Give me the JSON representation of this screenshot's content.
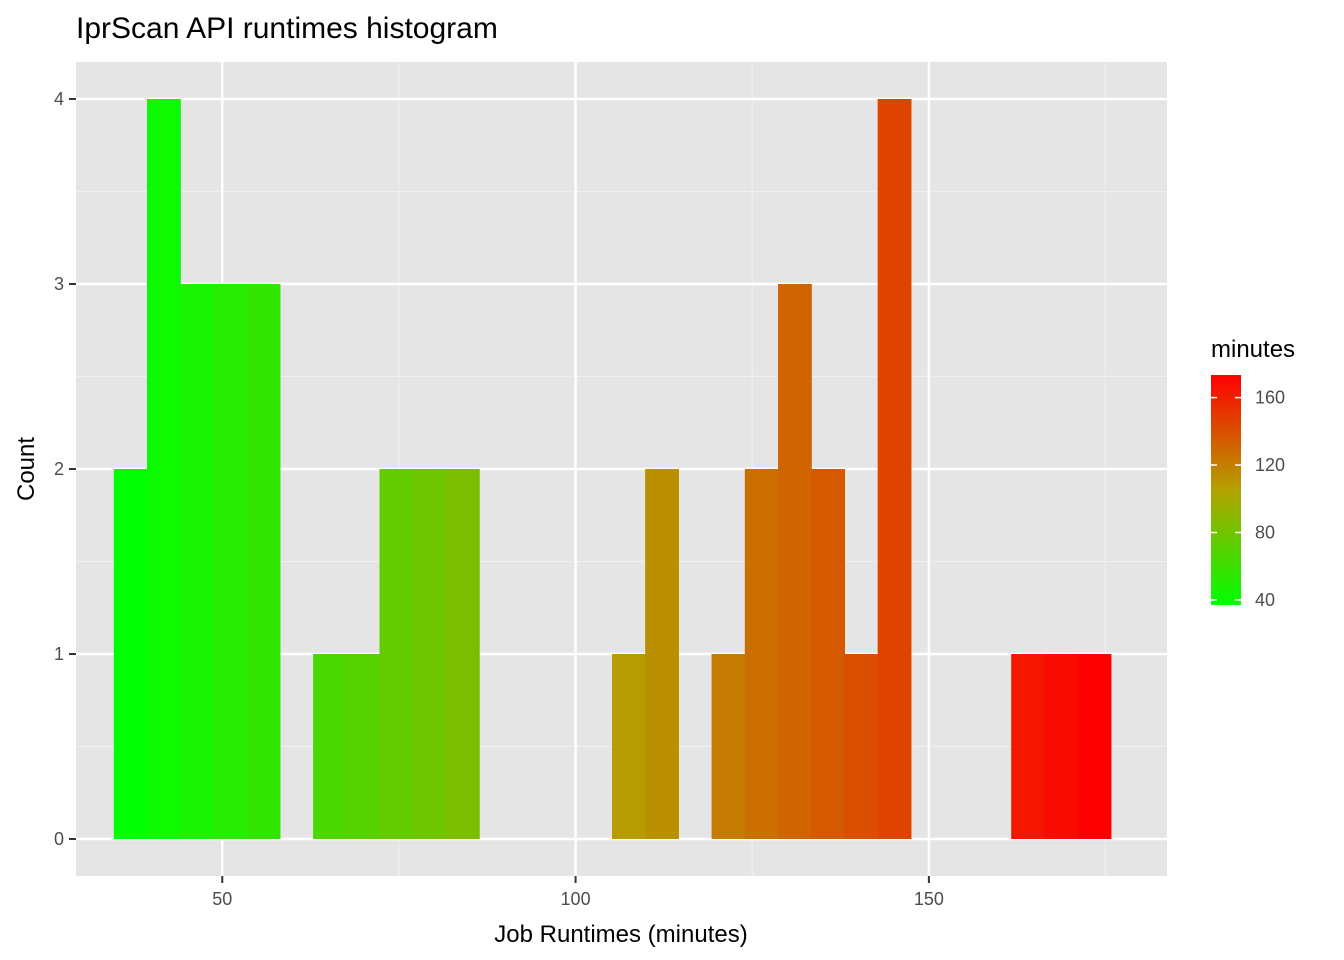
{
  "chart_data": {
    "type": "bar",
    "title": "IprScan API runtimes histogram",
    "xlabel": "Job Runtimes (minutes)",
    "ylabel": "Count",
    "xlim": [
      29.3,
      183.7
    ],
    "ylim": [
      -0.2,
      4.2
    ],
    "xticks": [
      50,
      100,
      150
    ],
    "yticks": [
      0,
      1,
      2,
      3,
      4
    ],
    "bin_width": 4.7,
    "bins": [
      {
        "x": 37.0,
        "count": 2
      },
      {
        "x": 41.7,
        "count": 4
      },
      {
        "x": 46.4,
        "count": 3
      },
      {
        "x": 51.1,
        "count": 3
      },
      {
        "x": 55.8,
        "count": 3
      },
      {
        "x": 65.2,
        "count": 1
      },
      {
        "x": 69.9,
        "count": 1
      },
      {
        "x": 74.6,
        "count": 2
      },
      {
        "x": 79.3,
        "count": 2
      },
      {
        "x": 84.0,
        "count": 2
      },
      {
        "x": 107.5,
        "count": 1
      },
      {
        "x": 112.2,
        "count": 2
      },
      {
        "x": 121.6,
        "count": 1
      },
      {
        "x": 126.3,
        "count": 2
      },
      {
        "x": 131.0,
        "count": 3
      },
      {
        "x": 135.7,
        "count": 2
      },
      {
        "x": 140.4,
        "count": 1
      },
      {
        "x": 145.1,
        "count": 4
      },
      {
        "x": 164.0,
        "count": 1
      },
      {
        "x": 168.7,
        "count": 1
      },
      {
        "x": 173.4,
        "count": 1
      }
    ],
    "grid": true,
    "legend": {
      "title": "minutes",
      "position": "right",
      "type": "colorbar",
      "range": [
        37,
        173.4
      ],
      "ticks": [
        40,
        80,
        120,
        160
      ],
      "low_color": "#00ff00",
      "high_color": "#ff0000"
    },
    "colors": {
      "panel_background": "#e5e5e5",
      "grid_major": "#ffffff",
      "grid_minor": "#f0f0f0",
      "axis_text": "#4d4d4d"
    }
  }
}
